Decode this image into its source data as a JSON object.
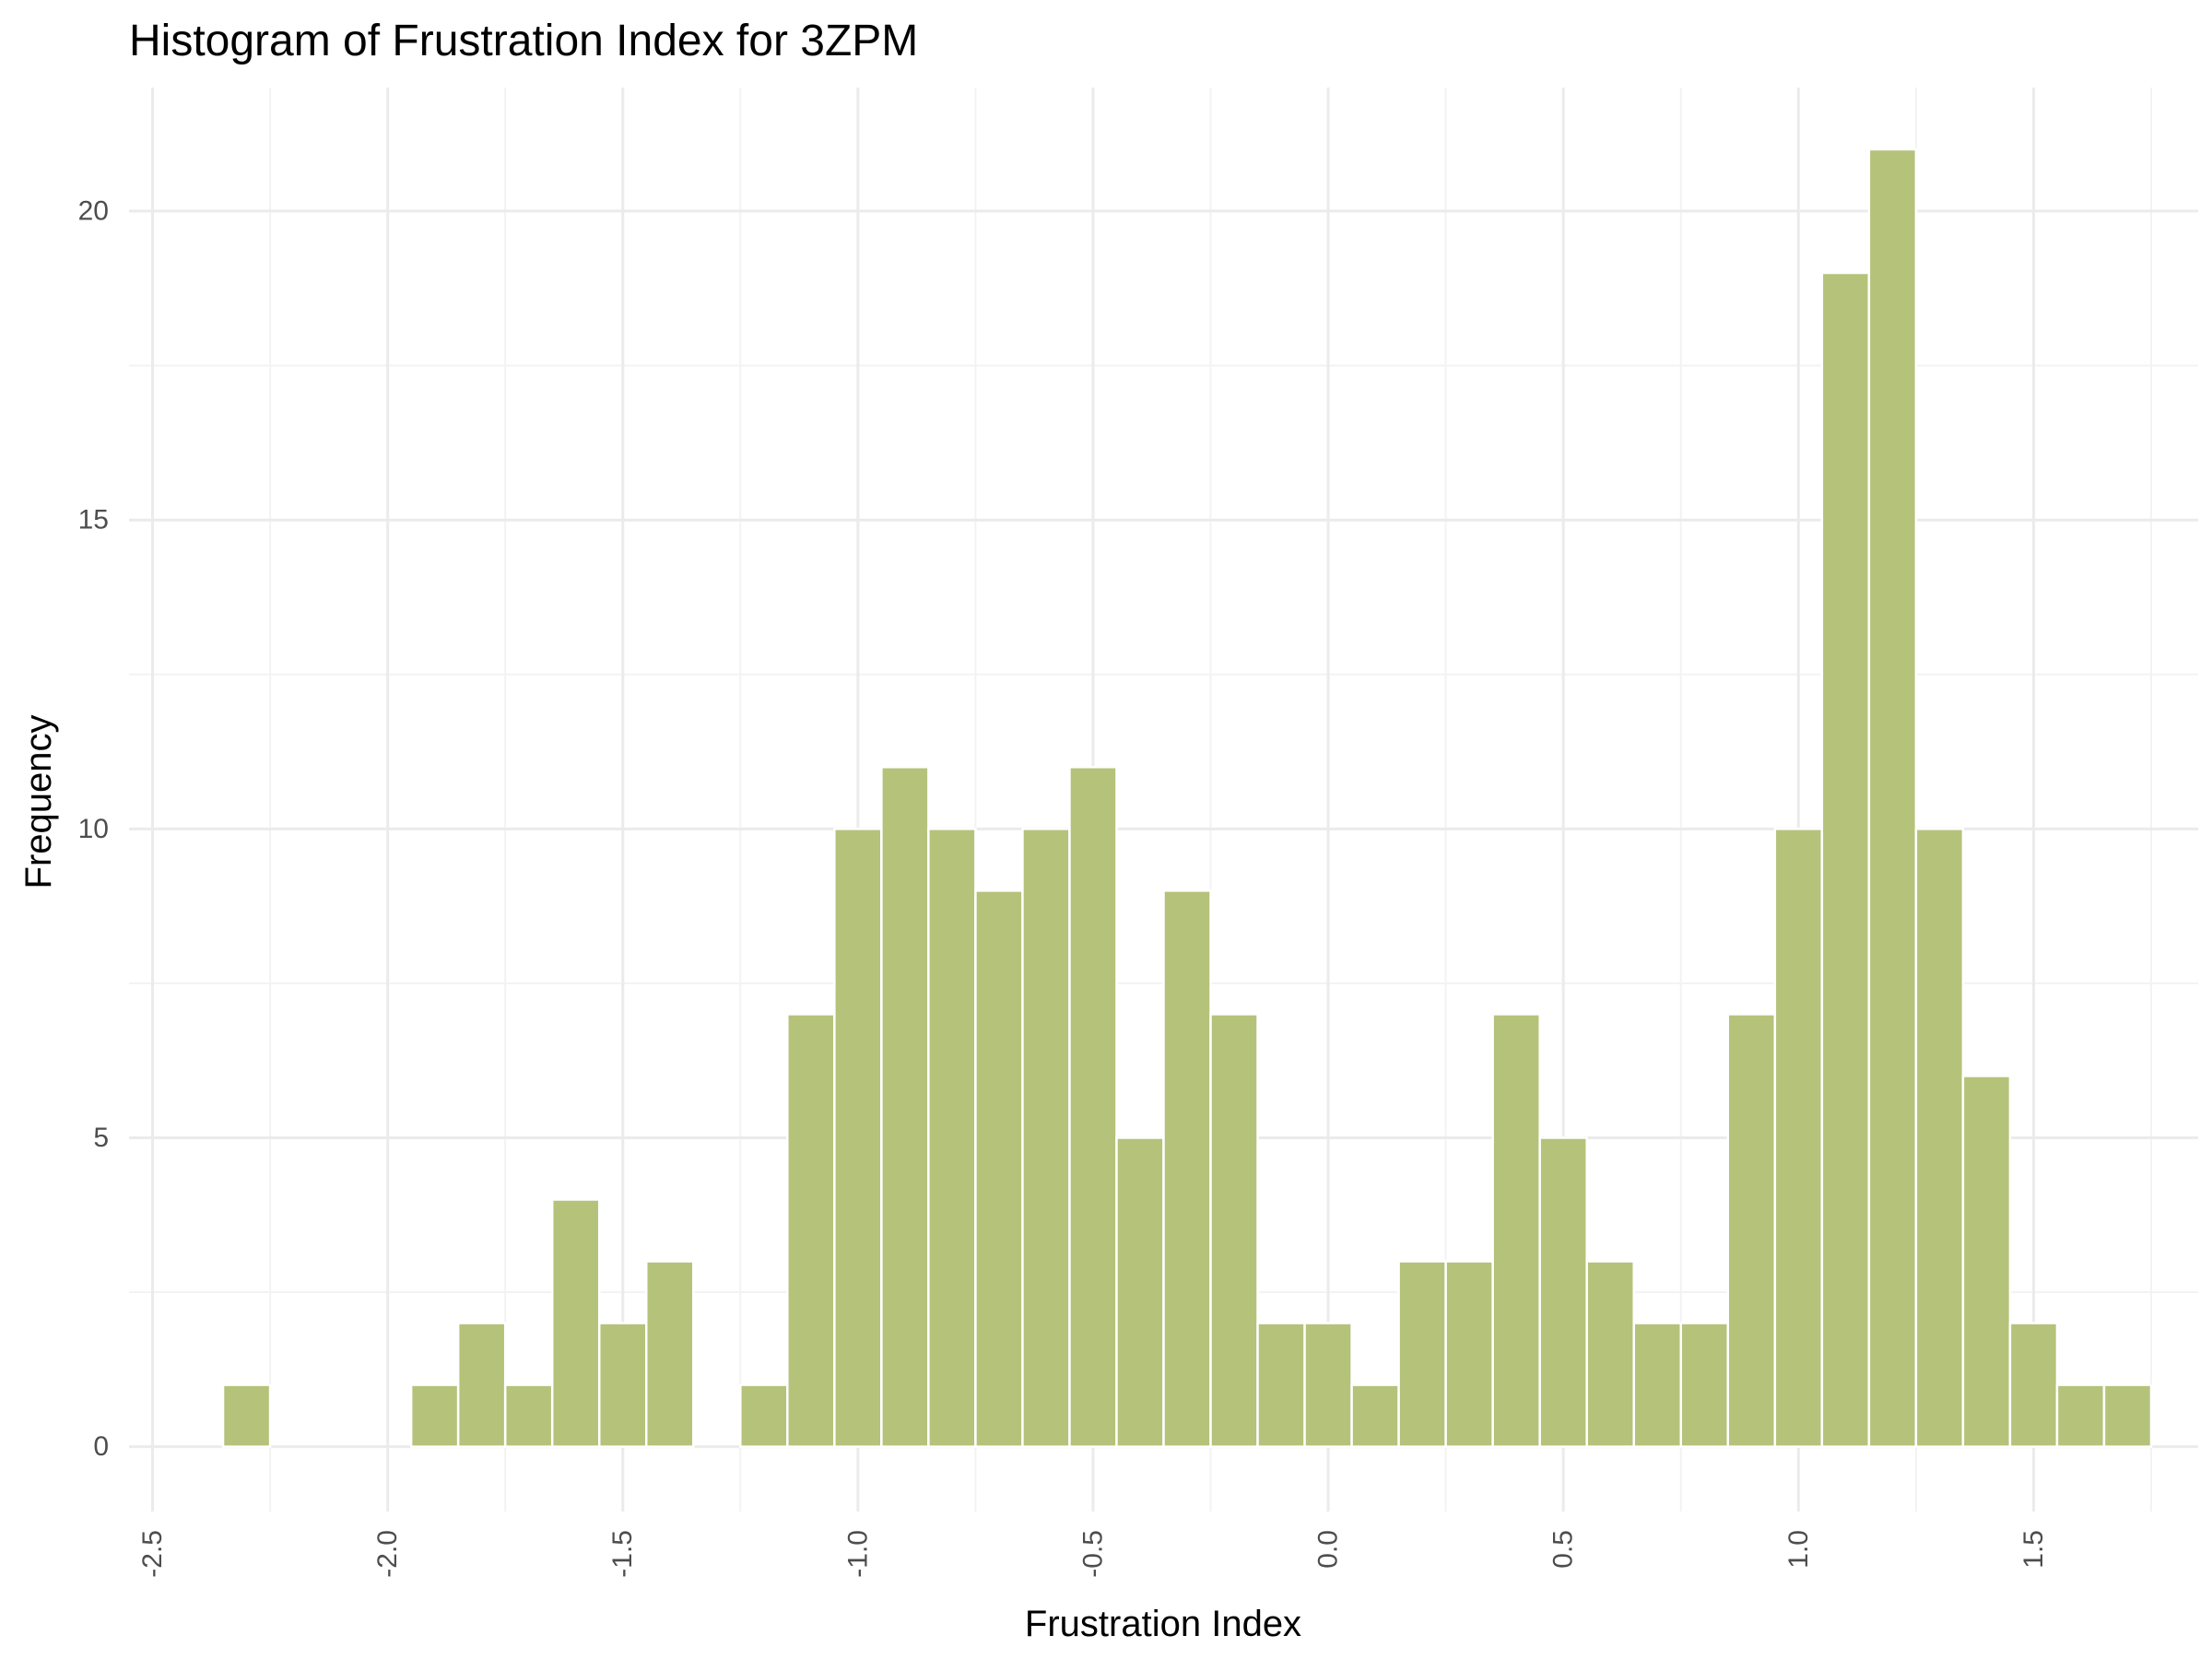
{
  "chart_data": {
    "type": "bar",
    "title": "Histogram of Frustration Index for 3ZPM",
    "xlabel": "Frustration Index",
    "ylabel": "Frequency",
    "bar_color": "#b5c27a",
    "bin_width": 0.1,
    "xlim": [
      -2.55,
      1.85
    ],
    "ylim": [
      -1.05,
      22.0
    ],
    "x_ticks": [
      -2.5,
      -2.0,
      -1.5,
      -1.0,
      -0.5,
      0.0,
      0.5,
      1.0,
      1.5
    ],
    "x_tick_labels": [
      "-2.5",
      "-2.0",
      "-1.5",
      "-1.0",
      "-0.5",
      "0.0",
      "0.5",
      "1.0",
      "1.5"
    ],
    "y_ticks": [
      0,
      5,
      10,
      15,
      20
    ],
    "y_tick_labels": [
      "0",
      "5",
      "10",
      "15",
      "20"
    ],
    "grid": true,
    "legend": "none",
    "bins": [
      {
        "x": -2.3,
        "count": 1
      },
      {
        "x": -2.2,
        "count": 0
      },
      {
        "x": -2.1,
        "count": 0
      },
      {
        "x": -2.0,
        "count": 0
      },
      {
        "x": -1.9,
        "count": 1
      },
      {
        "x": -1.8,
        "count": 2
      },
      {
        "x": -1.7,
        "count": 1
      },
      {
        "x": -1.6,
        "count": 4
      },
      {
        "x": -1.5,
        "count": 2
      },
      {
        "x": -1.4,
        "count": 3
      },
      {
        "x": -1.3,
        "count": 0
      },
      {
        "x": -1.2,
        "count": 1
      },
      {
        "x": -1.1,
        "count": 7
      },
      {
        "x": -1.0,
        "count": 10
      },
      {
        "x": -0.9,
        "count": 11
      },
      {
        "x": -0.8,
        "count": 10
      },
      {
        "x": -0.7,
        "count": 9
      },
      {
        "x": -0.6,
        "count": 10
      },
      {
        "x": -0.5,
        "count": 11
      },
      {
        "x": -0.4,
        "count": 5
      },
      {
        "x": -0.3,
        "count": 9
      },
      {
        "x": -0.2,
        "count": 7
      },
      {
        "x": -0.1,
        "count": 2
      },
      {
        "x": 0.0,
        "count": 2
      },
      {
        "x": 0.1,
        "count": 1
      },
      {
        "x": 0.2,
        "count": 3
      },
      {
        "x": 0.3,
        "count": 3
      },
      {
        "x": 0.4,
        "count": 7
      },
      {
        "x": 0.5,
        "count": 5
      },
      {
        "x": 0.6,
        "count": 3
      },
      {
        "x": 0.7,
        "count": 2
      },
      {
        "x": 0.8,
        "count": 2
      },
      {
        "x": 0.9,
        "count": 7
      },
      {
        "x": 1.0,
        "count": 10
      },
      {
        "x": 1.1,
        "count": 19
      },
      {
        "x": 1.2,
        "count": 21
      },
      {
        "x": 1.3,
        "count": 10
      },
      {
        "x": 1.4,
        "count": 6
      },
      {
        "x": 1.5,
        "count": 2
      },
      {
        "x": 1.6,
        "count": 1
      },
      {
        "x": 1.7,
        "count": 1
      }
    ]
  }
}
